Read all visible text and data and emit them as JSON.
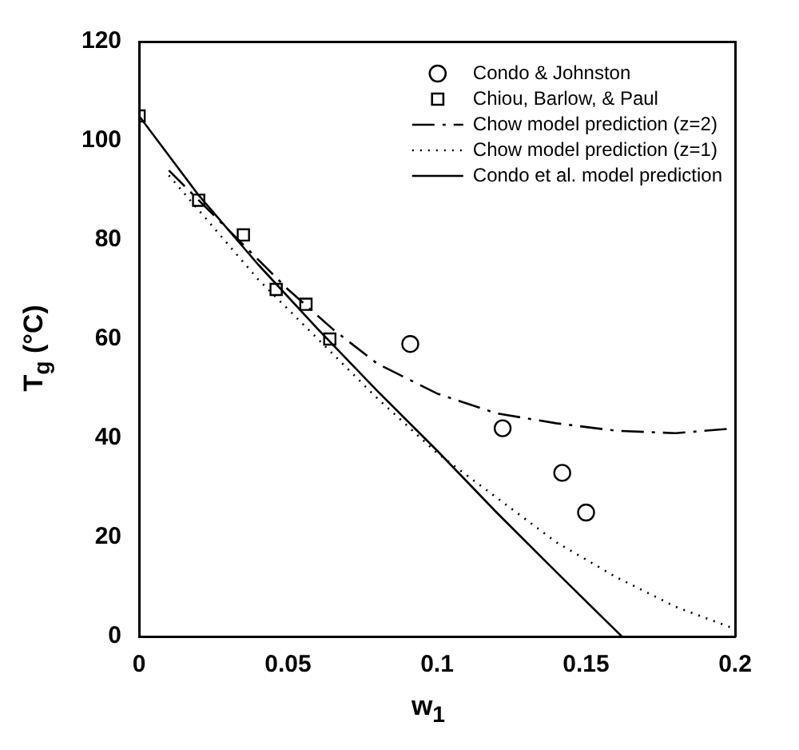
{
  "chart_data": {
    "type": "line",
    "xlabel": "w$_{1}$",
    "ylabel": "T$_{g}$ (°C)",
    "xlim": [
      0,
      0.2
    ],
    "xticks": [
      0,
      0.05,
      0.1,
      0.15,
      0.2
    ],
    "ylim": [
      0,
      120
    ],
    "yticks": [
      0,
      20,
      40,
      60,
      80,
      100,
      120
    ],
    "grid": false,
    "legend": "top right",
    "series": [
      {
        "name": "Condo & Johnston",
        "type": "scatter",
        "marker": "circle",
        "color": "#000000",
        "x": [
          0.091,
          0.122,
          0.142,
          0.15
        ],
        "values": [
          59,
          42,
          33,
          25
        ]
      },
      {
        "name": "Chiou, Barlow, & Paul",
        "type": "scatter",
        "marker": "square",
        "color": "#000000",
        "x": [
          0,
          0.02,
          0.035,
          0.046,
          0.056,
          0.064
        ],
        "values": [
          105,
          88,
          81,
          70,
          67,
          60
        ]
      },
      {
        "name": "Chow model prediction (z=2)",
        "line_style": "dashdot",
        "marker": "none",
        "color": "#000000",
        "x": [
          0.01,
          0.02,
          0.035,
          0.05,
          0.065,
          0.08,
          0.1,
          0.12,
          0.14,
          0.16,
          0.18,
          0.2
        ],
        "values": [
          94,
          88,
          79,
          70,
          62,
          55,
          49,
          45,
          43,
          41.5,
          41,
          42
        ]
      },
      {
        "name": "Chow model prediction (z=1)",
        "line_style": "dotted",
        "marker": "none",
        "color": "#000000",
        "x": [
          0.01,
          0.02,
          0.04,
          0.06,
          0.08,
          0.1,
          0.12,
          0.14,
          0.16,
          0.18,
          0.2
        ],
        "values": [
          93,
          86,
          72,
          60,
          48,
          37,
          28,
          19,
          12,
          6,
          1.5
        ]
      },
      {
        "name": "Condo et al. model prediction",
        "line_style": "solid",
        "marker": "none",
        "color": "#000000",
        "x": [
          0,
          0.02,
          0.04,
          0.06,
          0.08,
          0.1,
          0.12,
          0.14,
          0.162
        ],
        "values": [
          105,
          89,
          75,
          62,
          49.5,
          37.5,
          25,
          13,
          0
        ]
      }
    ]
  }
}
